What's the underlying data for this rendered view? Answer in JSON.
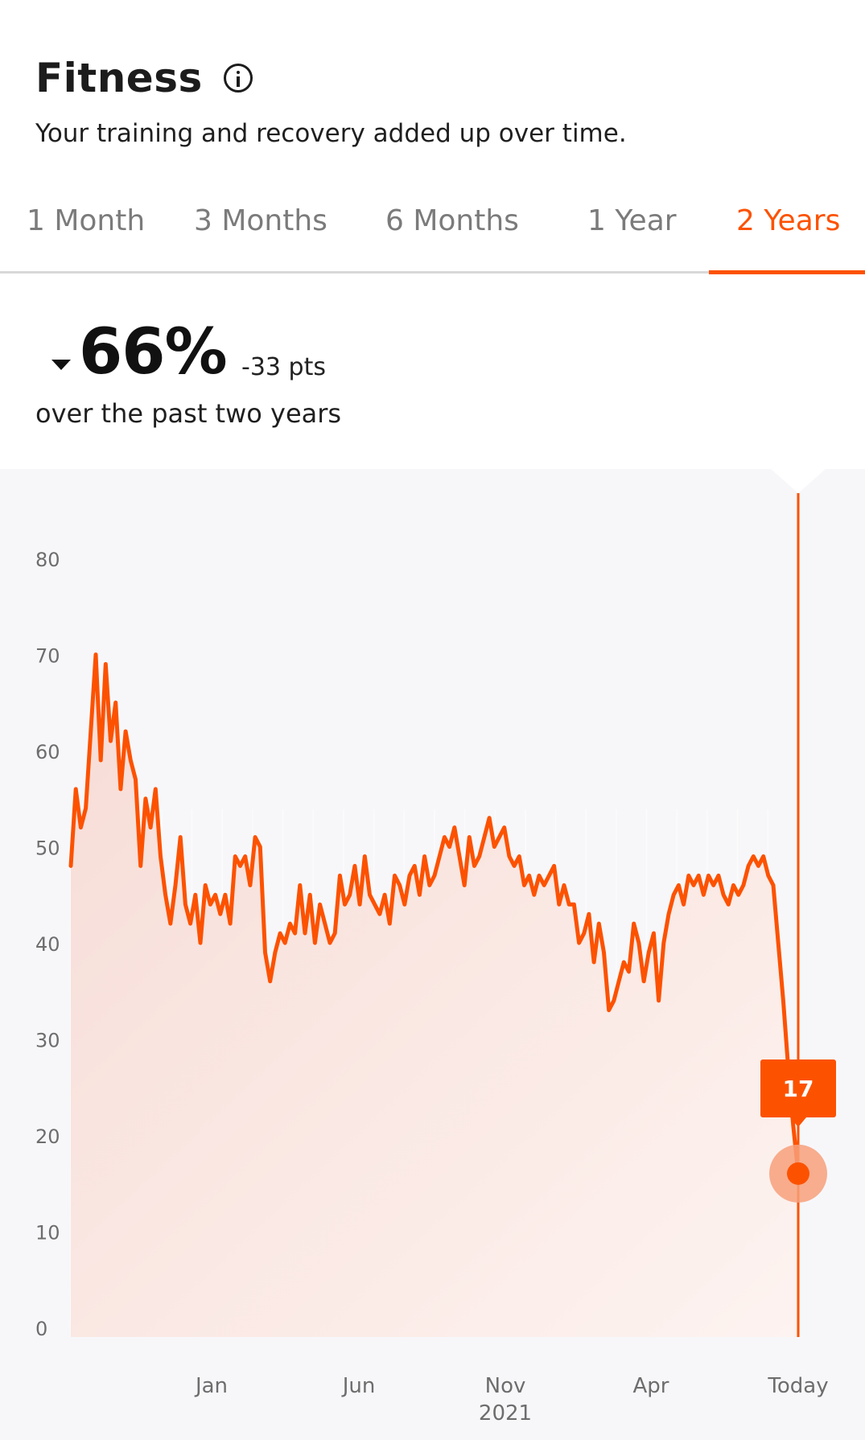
{
  "header": {
    "title": "Fitness",
    "subtitle": "Your training and recovery added up over time."
  },
  "tabs": [
    {
      "label": "1 Month",
      "active": false
    },
    {
      "label": "3 Months",
      "active": false
    },
    {
      "label": "6 Months",
      "active": false
    },
    {
      "label": "1 Year",
      "active": false
    },
    {
      "label": "2 Years",
      "active": true
    }
  ],
  "summary": {
    "direction": "down",
    "percent": "66%",
    "points": "-33 pts",
    "period": "over the past two years"
  },
  "colors": {
    "accent": "#fc5200",
    "line": "#fc5200",
    "marker_halo": "#f7a07a"
  },
  "icons": {
    "info": "info-icon",
    "trend": "caret-down-icon"
  },
  "chart_data": {
    "type": "line",
    "title": "",
    "xlabel": "",
    "ylabel": "",
    "ylim": [
      0,
      80
    ],
    "yticks": [
      "0",
      "10",
      "20",
      "30",
      "40",
      "50",
      "60",
      "70",
      "80"
    ],
    "xticks": [
      {
        "label": "Jan",
        "sublabel": ""
      },
      {
        "label": "Jun",
        "sublabel": ""
      },
      {
        "label": "Nov",
        "sublabel": "2021"
      },
      {
        "label": "Apr",
        "sublabel": ""
      },
      {
        "label": "Today",
        "sublabel": ""
      }
    ],
    "grid": false,
    "legend": "none",
    "selected": {
      "label": "Today",
      "value": 17,
      "display": "17"
    },
    "series": [
      {
        "values": [
          49,
          57,
          53,
          55,
          63,
          71,
          60,
          70,
          62,
          66,
          57,
          63,
          60,
          58,
          49,
          56,
          53,
          57,
          50,
          46,
          43,
          47,
          52,
          45,
          43,
          46,
          41,
          47,
          45,
          46,
          44,
          46,
          43,
          50,
          49,
          50,
          47,
          52,
          51,
          40,
          37,
          40,
          42,
          41,
          43,
          42,
          47,
          42,
          46,
          41,
          45,
          43,
          41,
          42,
          48,
          45,
          46,
          49,
          45,
          50,
          46,
          45,
          44,
          46,
          43,
          48,
          47,
          45,
          48,
          49,
          46,
          50,
          47,
          48,
          50,
          52,
          51,
          53,
          50,
          47,
          52,
          49,
          50,
          52,
          54,
          51,
          52,
          53,
          50,
          49,
          50,
          47,
          48,
          46,
          48,
          47,
          48,
          49,
          45,
          47,
          45,
          45,
          41,
          42,
          44,
          39,
          43,
          40,
          34,
          35,
          37,
          39,
          38,
          43,
          41,
          37,
          40,
          42,
          35,
          41,
          44,
          46,
          47,
          45,
          48,
          47,
          48,
          46,
          48,
          47,
          48,
          46,
          45,
          47,
          46,
          47,
          49,
          50,
          49,
          50,
          48,
          47,
          41,
          35,
          28,
          22,
          17
        ],
        "dates_note": "",
        "x_start_tick": 0
      }
    ]
  }
}
